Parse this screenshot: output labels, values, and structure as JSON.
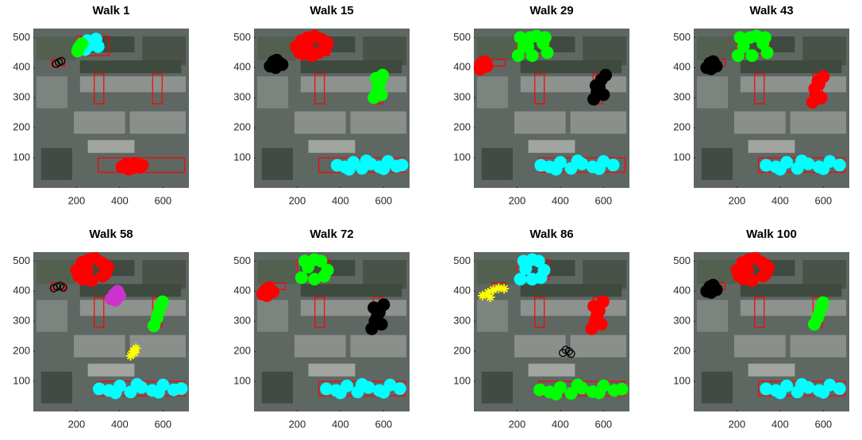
{
  "chart_data": [
    {
      "type": "scatter",
      "title": "Walk 1",
      "xlim": [
        0,
        720
      ],
      "ylim": [
        0,
        530
      ],
      "xticks": [
        200,
        400,
        600
      ],
      "yticks": [
        100,
        200,
        300,
        400,
        500
      ],
      "rects": [
        [
          200,
          350,
          440,
          505
        ],
        [
          85,
          145,
          405,
          428
        ],
        [
          282,
          326,
          280,
          380
        ],
        [
          552,
          596,
          280,
          380
        ],
        [
          300,
          700,
          52,
          100
        ]
      ],
      "series": [
        {
          "color": "#00ffff",
          "marker": ".",
          "x": [
            225,
            250,
            275,
            300,
            240,
            290,
            265
          ],
          "y": [
            470,
            490,
            480,
            470,
            460,
            495,
            475
          ]
        },
        {
          "color": "#00ff00",
          "marker": ".",
          "x": [
            205,
            215,
            225,
            210
          ],
          "y": [
            455,
            470,
            480,
            465
          ]
        },
        {
          "color": "#000000",
          "marker": "o",
          "x": [
            105,
            118,
            130
          ],
          "y": [
            412,
            418,
            422
          ]
        },
        {
          "color": "#ff0000",
          "marker": ".",
          "x": [
            410,
            430,
            455,
            480,
            505,
            440,
            470,
            495
          ],
          "y": [
            70,
            78,
            65,
            72,
            75,
            62,
            82,
            68
          ]
        }
      ]
    },
    {
      "type": "scatter",
      "title": "Walk 15",
      "xlim": [
        0,
        720
      ],
      "ylim": [
        0,
        530
      ],
      "xticks": [
        200,
        400,
        600
      ],
      "yticks": [
        100,
        200,
        300,
        400,
        500
      ],
      "rects": [
        [
          200,
          350,
          440,
          505
        ],
        [
          85,
          145,
          405,
          428
        ],
        [
          282,
          326,
          280,
          380
        ],
        [
          552,
          596,
          280,
          380
        ],
        [
          300,
          700,
          52,
          100
        ]
      ],
      "series": [
        {
          "color": "#ff0000",
          "marker": ".",
          "x": [
            195,
            220,
            250,
            280,
            310,
            340,
            230,
            270,
            300,
            250,
            210,
            330
          ],
          "y": [
            470,
            490,
            500,
            505,
            495,
            480,
            445,
            440,
            450,
            470,
            450,
            460
          ]
        },
        {
          "color": "#000000",
          "marker": ".",
          "x": [
            75,
            90,
            105,
            120,
            130,
            100
          ],
          "y": [
            405,
            420,
            425,
            415,
            410,
            400
          ]
        },
        {
          "color": "#00ff00",
          "marker": ".",
          "x": [
            555,
            570,
            585,
            595,
            565,
            590,
            575
          ],
          "y": [
            300,
            320,
            350,
            375,
            365,
            310,
            335
          ]
        },
        {
          "color": "#00ffff",
          "marker": ".",
          "x": [
            385,
            420,
            460,
            500,
            540,
            580,
            620,
            660,
            685,
            440,
            520,
            600
          ],
          "y": [
            75,
            70,
            85,
            65,
            80,
            70,
            88,
            72,
            76,
            62,
            90,
            64
          ]
        }
      ]
    },
    {
      "type": "scatter",
      "title": "Walk 29",
      "xlim": [
        0,
        720
      ],
      "ylim": [
        0,
        530
      ],
      "xticks": [
        200,
        400,
        600
      ],
      "yticks": [
        100,
        200,
        300,
        400,
        500
      ],
      "rects": [
        [
          200,
          350,
          440,
          505
        ],
        [
          85,
          145,
          405,
          428
        ],
        [
          282,
          326,
          280,
          380
        ],
        [
          552,
          596,
          280,
          380
        ],
        [
          300,
          700,
          52,
          100
        ]
      ],
      "series": [
        {
          "color": "#00ff00",
          "marker": ".",
          "x": [
            205,
            230,
            260,
            290,
            320,
            340,
            215,
            270,
            330,
            250
          ],
          "y": [
            440,
            470,
            500,
            505,
            480,
            450,
            500,
            440,
            500,
            470
          ]
        },
        {
          "color": "#ff0000",
          "marker": ".",
          "x": [
            20,
            35,
            50,
            60,
            30
          ],
          "y": [
            400,
            415,
            420,
            405,
            395
          ]
        },
        {
          "color": "#000000",
          "marker": ".",
          "x": [
            555,
            570,
            590,
            610,
            565,
            600,
            580
          ],
          "y": [
            295,
            320,
            360,
            375,
            340,
            310,
            335
          ]
        },
        {
          "color": "#00ffff",
          "marker": ".",
          "x": [
            310,
            350,
            400,
            450,
            500,
            550,
            600,
            645,
            380,
            480,
            580
          ],
          "y": [
            75,
            70,
            85,
            65,
            80,
            70,
            88,
            76,
            62,
            90,
            64
          ]
        }
      ]
    },
    {
      "type": "scatter",
      "title": "Walk 43",
      "xlim": [
        0,
        720
      ],
      "ylim": [
        0,
        530
      ],
      "xticks": [
        200,
        400,
        600
      ],
      "yticks": [
        100,
        200,
        300,
        400,
        500
      ],
      "rects": [
        [
          200,
          350,
          440,
          505
        ],
        [
          85,
          145,
          405,
          428
        ],
        [
          282,
          326,
          280,
          380
        ],
        [
          552,
          596,
          280,
          380
        ],
        [
          300,
          700,
          52,
          100
        ]
      ],
      "series": [
        {
          "color": "#00ff00",
          "marker": ".",
          "x": [
            205,
            230,
            260,
            290,
            320,
            340,
            215,
            270,
            330
          ],
          "y": [
            440,
            470,
            500,
            505,
            480,
            450,
            500,
            440,
            500
          ]
        },
        {
          "color": "#000000",
          "marker": ".",
          "x": [
            60,
            75,
            90,
            105,
            80
          ],
          "y": [
            400,
            415,
            420,
            405,
            396
          ]
        },
        {
          "color": "#ff0000",
          "marker": ".",
          "x": [
            550,
            565,
            580,
            600,
            560,
            590,
            575
          ],
          "y": [
            285,
            310,
            345,
            370,
            330,
            300,
            355
          ]
        },
        {
          "color": "#00ffff",
          "marker": ".",
          "x": [
            335,
            380,
            430,
            480,
            530,
            580,
            630,
            675,
            400,
            500,
            600
          ],
          "y": [
            75,
            70,
            85,
            65,
            80,
            70,
            88,
            76,
            62,
            90,
            64
          ]
        }
      ]
    },
    {
      "type": "scatter",
      "title": "Walk 58",
      "xlim": [
        0,
        720
      ],
      "ylim": [
        0,
        530
      ],
      "xticks": [
        200,
        400,
        600
      ],
      "yticks": [
        100,
        200,
        300,
        400,
        500
      ],
      "rects": [
        [
          200,
          350,
          440,
          505
        ],
        [
          85,
          145,
          405,
          428
        ],
        [
          282,
          326,
          280,
          380
        ],
        [
          552,
          596,
          280,
          380
        ],
        [
          300,
          700,
          52,
          100
        ]
      ],
      "series": [
        {
          "color": "#ff0000",
          "marker": ".",
          "x": [
            200,
            225,
            255,
            285,
            315,
            345,
            230,
            270,
            320,
            250,
            210,
            335
          ],
          "y": [
            470,
            495,
            505,
            510,
            495,
            480,
            440,
            435,
            450,
            470,
            450,
            460
          ]
        },
        {
          "color": "#000000",
          "marker": "o",
          "x": [
            95,
            110,
            125,
            138
          ],
          "y": [
            410,
            415,
            418,
            412
          ]
        },
        {
          "color": "#cc33cc",
          "marker": ".",
          "x": [
            360,
            375,
            390,
            400,
            380
          ],
          "y": [
            375,
            390,
            400,
            385,
            370
          ]
        },
        {
          "color": "#00ff00",
          "marker": ".",
          "x": [
            558,
            572,
            588,
            598,
            580
          ],
          "y": [
            285,
            310,
            350,
            365,
            330
          ]
        },
        {
          "color": "#ffff00",
          "marker": "*",
          "x": [
            450,
            462,
            475,
            468
          ],
          "y": [
            185,
            200,
            210,
            195
          ]
        },
        {
          "color": "#00ffff",
          "marker": ".",
          "x": [
            305,
            350,
            400,
            450,
            500,
            550,
            600,
            650,
            685,
            380,
            480,
            580
          ],
          "y": [
            75,
            70,
            85,
            65,
            80,
            70,
            88,
            72,
            76,
            62,
            90,
            64
          ]
        }
      ]
    },
    {
      "type": "scatter",
      "title": "Walk 72",
      "xlim": [
        0,
        720
      ],
      "ylim": [
        0,
        530
      ],
      "xticks": [
        200,
        400,
        600
      ],
      "yticks": [
        100,
        200,
        300,
        400,
        500
      ],
      "rects": [
        [
          200,
          350,
          440,
          505
        ],
        [
          85,
          145,
          405,
          428
        ],
        [
          282,
          326,
          280,
          380
        ],
        [
          552,
          596,
          280,
          380
        ],
        [
          300,
          700,
          52,
          100
        ]
      ],
      "series": [
        {
          "color": "#00ff00",
          "marker": ".",
          "x": [
            220,
            250,
            280,
            310,
            340,
            235,
            325,
            280
          ],
          "y": [
            445,
            480,
            505,
            500,
            470,
            500,
            450,
            440
          ]
        },
        {
          "color": "#ff0000",
          "marker": ".",
          "x": [
            40,
            55,
            70,
            88,
            60
          ],
          "y": [
            390,
            405,
            412,
            398,
            385
          ]
        },
        {
          "color": "#000000",
          "marker": ".",
          "x": [
            545,
            560,
            580,
            600,
            555,
            590,
            570
          ],
          "y": [
            275,
            300,
            330,
            355,
            345,
            290,
            315
          ]
        },
        {
          "color": "#00ffff",
          "marker": ".",
          "x": [
            335,
            380,
            430,
            480,
            530,
            580,
            630,
            675,
            400,
            500,
            600
          ],
          "y": [
            75,
            70,
            85,
            65,
            80,
            70,
            88,
            76,
            62,
            90,
            64
          ]
        }
      ]
    },
    {
      "type": "scatter",
      "title": "Walk 86",
      "xlim": [
        0,
        720
      ],
      "ylim": [
        0,
        530
      ],
      "xticks": [
        200,
        400,
        600
      ],
      "yticks": [
        100,
        200,
        300,
        400,
        500
      ],
      "rects": [
        [
          200,
          350,
          440,
          505
        ],
        [
          85,
          145,
          405,
          428
        ],
        [
          282,
          326,
          280,
          380
        ],
        [
          552,
          596,
          280,
          380
        ],
        [
          300,
          700,
          52,
          100
        ]
      ],
      "series": [
        {
          "color": "#00ffff",
          "marker": ".",
          "x": [
            215,
            240,
            270,
            300,
            325,
            230,
            310,
            270
          ],
          "y": [
            440,
            475,
            505,
            500,
            470,
            500,
            445,
            440
          ]
        },
        {
          "color": "#ffff00",
          "marker": "*",
          "x": [
            40,
            65,
            90,
            115,
            140,
            75
          ],
          "y": [
            385,
            395,
            405,
            410,
            408,
            380
          ]
        },
        {
          "color": "#ff0000",
          "marker": ".",
          "x": [
            545,
            560,
            580,
            598,
            555,
            590,
            570
          ],
          "y": [
            275,
            300,
            335,
            365,
            350,
            290,
            320
          ]
        },
        {
          "color": "#000000",
          "marker": "o",
          "x": [
            412,
            425,
            440,
            450
          ],
          "y": [
            195,
            205,
            200,
            192
          ]
        },
        {
          "color": "#00ff00",
          "marker": ".",
          "x": [
            305,
            350,
            400,
            450,
            500,
            550,
            600,
            650,
            685,
            380,
            480,
            580
          ],
          "y": [
            72,
            65,
            80,
            60,
            78,
            66,
            85,
            70,
            74,
            58,
            88,
            62
          ]
        }
      ]
    },
    {
      "type": "scatter",
      "title": "Walk 100",
      "xlim": [
        0,
        720
      ],
      "ylim": [
        0,
        530
      ],
      "xticks": [
        200,
        400,
        600
      ],
      "yticks": [
        100,
        200,
        300,
        400,
        500
      ],
      "rects": [
        [
          200,
          350,
          440,
          505
        ],
        [
          85,
          145,
          405,
          428
        ],
        [
          282,
          326,
          280,
          380
        ],
        [
          552,
          596,
          280,
          380
        ],
        [
          300,
          700,
          52,
          100
        ]
      ],
      "series": [
        {
          "color": "#ff0000",
          "marker": ".",
          "x": [
            200,
            225,
            255,
            285,
            315,
            345,
            230,
            270,
            320,
            250,
            210,
            335
          ],
          "y": [
            470,
            495,
            505,
            510,
            495,
            480,
            440,
            435,
            450,
            470,
            450,
            460
          ]
        },
        {
          "color": "#000000",
          "marker": ".",
          "x": [
            60,
            75,
            90,
            105,
            80
          ],
          "y": [
            400,
            415,
            420,
            405,
            396
          ]
        },
        {
          "color": "#00ff00",
          "marker": ".",
          "x": [
            558,
            572,
            588,
            598,
            580
          ],
          "y": [
            290,
            310,
            340,
            362,
            325
          ]
        },
        {
          "color": "#00ffff",
          "marker": ".",
          "x": [
            335,
            380,
            430,
            480,
            530,
            580,
            630,
            675,
            400,
            500,
            600
          ],
          "y": [
            75,
            70,
            85,
            65,
            80,
            70,
            88,
            76,
            62,
            90,
            64
          ]
        }
      ]
    }
  ]
}
